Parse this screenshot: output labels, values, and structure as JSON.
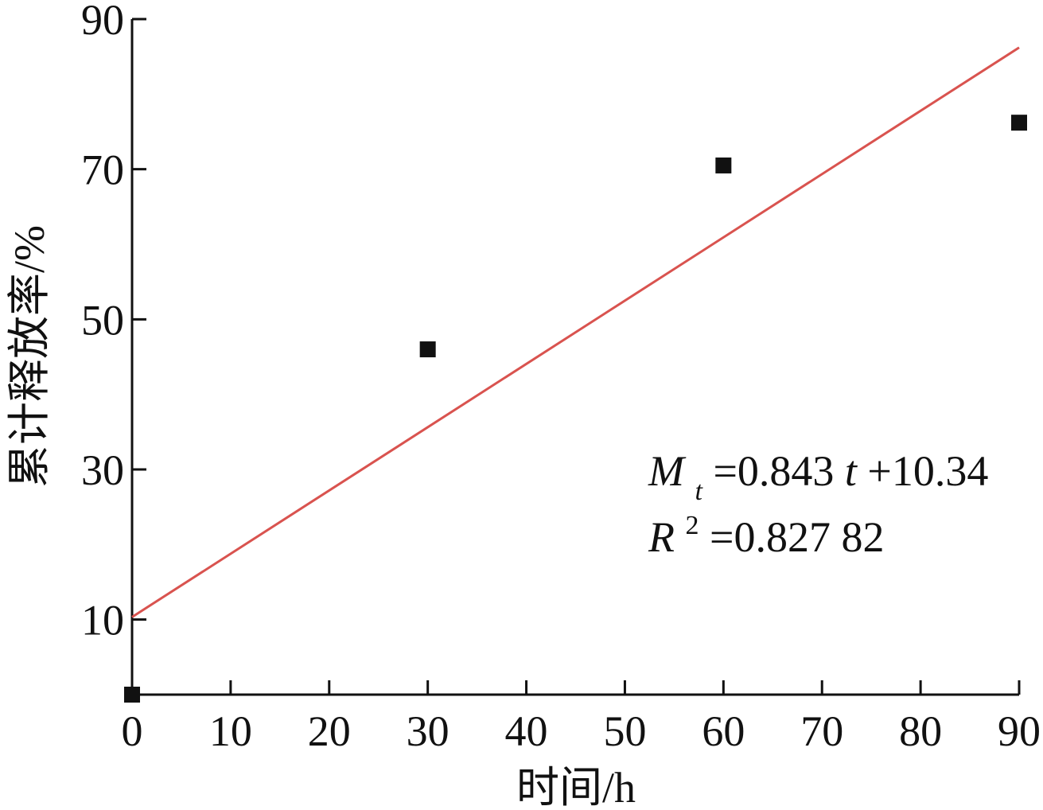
{
  "chart_data": {
    "type": "scatter",
    "xlabel": "时间/h",
    "ylabel": "累计释放率/%",
    "xlim": [
      0,
      90
    ],
    "ylim": [
      0,
      90
    ],
    "x_ticks": [
      0,
      10,
      20,
      30,
      40,
      50,
      60,
      70,
      80,
      90
    ],
    "y_ticks": [
      10,
      30,
      50,
      70,
      90
    ],
    "grid": false,
    "series": [
      {
        "points": [
          {
            "x": 0,
            "y": 0
          },
          {
            "x": 30,
            "y": 46
          },
          {
            "x": 60,
            "y": 70.5
          },
          {
            "x": 90,
            "y": 76.2
          }
        ],
        "color": "#111111"
      }
    ],
    "fit": {
      "slope": 0.843,
      "intercept": 10.34,
      "x_range": [
        0,
        90
      ],
      "color": "#d9534f"
    },
    "annotations": {
      "equation": {
        "M": "M",
        "sub": "t",
        "rest1": "=0.843",
        "t": "t",
        "rest2": "+10.34"
      },
      "r2": {
        "R": "R",
        "sup": "2",
        "rest": "=0.827 82"
      }
    }
  }
}
